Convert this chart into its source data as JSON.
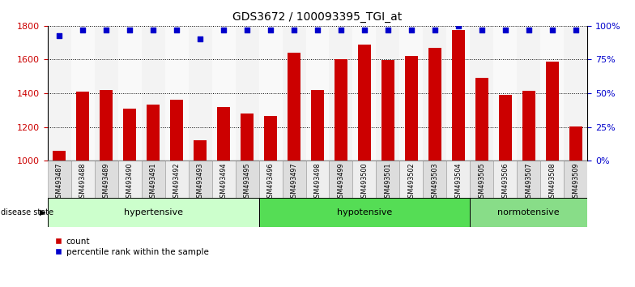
{
  "title": "GDS3672 / 100093395_TGI_at",
  "samples": [
    "GSM493487",
    "GSM493488",
    "GSM493489",
    "GSM493490",
    "GSM493491",
    "GSM493492",
    "GSM493493",
    "GSM493494",
    "GSM493495",
    "GSM493496",
    "GSM493497",
    "GSM493498",
    "GSM493499",
    "GSM493500",
    "GSM493501",
    "GSM493502",
    "GSM493503",
    "GSM493504",
    "GSM493505",
    "GSM493506",
    "GSM493507",
    "GSM493508",
    "GSM493509"
  ],
  "counts": [
    1060,
    1410,
    1420,
    1310,
    1335,
    1360,
    1120,
    1320,
    1280,
    1265,
    1640,
    1420,
    1600,
    1690,
    1595,
    1620,
    1670,
    1775,
    1490,
    1390,
    1415,
    1590,
    1205
  ],
  "percentile_values": [
    93,
    97,
    97,
    97,
    97,
    97,
    90,
    97,
    97,
    97,
    97,
    97,
    97,
    97,
    97,
    97,
    97,
    100,
    97,
    97,
    97,
    97,
    97
  ],
  "groups": [
    {
      "label": "hypertensive",
      "start": 0,
      "end": 9,
      "color": "#ccffcc"
    },
    {
      "label": "hypotensive",
      "start": 9,
      "end": 18,
      "color": "#55dd55"
    },
    {
      "label": "normotensive",
      "start": 18,
      "end": 23,
      "color": "#88dd88"
    }
  ],
  "bar_color": "#cc0000",
  "dot_color": "#0000cc",
  "ylim_left": [
    1000,
    1800
  ],
  "ylim_right": [
    0,
    100
  ],
  "yticks_left": [
    1000,
    1200,
    1400,
    1600,
    1800
  ],
  "yticks_right": [
    0,
    25,
    50,
    75,
    100
  ],
  "background_color": "#ffffff",
  "bar_width": 0.55,
  "xtick_bg_odd": "#dddddd",
  "xtick_bg_even": "#eeeeee",
  "plot_facecolor": "#ffffff"
}
